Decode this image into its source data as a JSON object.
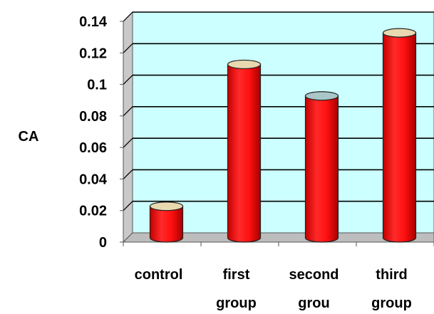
{
  "chart_data": {
    "type": "bar",
    "title": "",
    "xlabel": "",
    "ylabel": "CA",
    "ylim": [
      0,
      0.14
    ],
    "yticks": [
      "0",
      "0.02",
      "0.04",
      "0.06",
      "0.08",
      "0.1",
      "0.12",
      "0.14"
    ],
    "categories": [
      [
        "control"
      ],
      [
        "first",
        "group"
      ],
      [
        "second",
        "grou"
      ],
      [
        "third",
        "group"
      ]
    ],
    "values": [
      0.02,
      0.11,
      0.09,
      0.13
    ],
    "grid": true,
    "bar_style": "3d-cylinder",
    "colors": {
      "bar": "#ff1a1a",
      "bar_dark": "#b30000",
      "bar_top": "#e8d9b0",
      "bar_top_alt": "#a9c6c8",
      "plot_back": "#ccffff",
      "plot_floor": "#c0c0c0",
      "plot_side": "#c9c9c9",
      "grid": "#000000"
    }
  }
}
